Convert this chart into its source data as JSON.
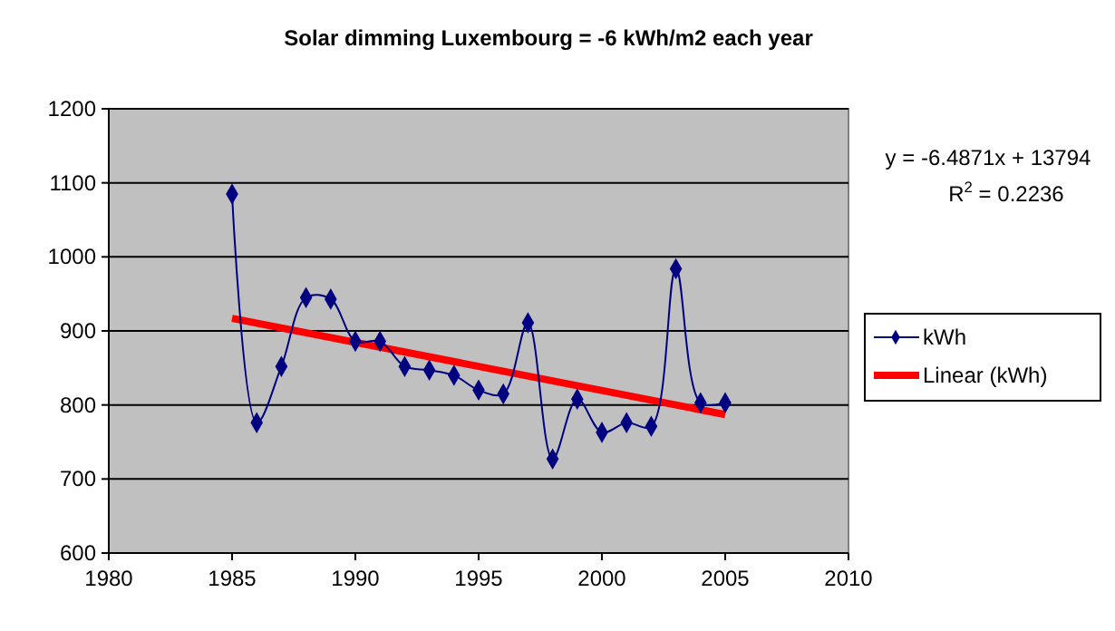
{
  "chart_data": {
    "type": "line",
    "title": "Solar dimming Luxembourg = -6 kWh/m2 each year",
    "x": [
      1985,
      1986,
      1987,
      1988,
      1989,
      1990,
      1991,
      1992,
      1993,
      1994,
      1995,
      1996,
      1997,
      1998,
      1999,
      2000,
      2001,
      2002,
      2003,
      2004,
      2005
    ],
    "series": [
      {
        "name": "kWh",
        "color": "#000080",
        "marker": "diamond",
        "values": [
          1085,
          776,
          852,
          945,
          943,
          886,
          886,
          852,
          847,
          840,
          820,
          815,
          911,
          727,
          808,
          763,
          776,
          771,
          984,
          803,
          803
        ]
      },
      {
        "name": "Linear (kWh)",
        "color": "#ff0000",
        "marker": "none",
        "x": [
          1985,
          2005
        ],
        "values": [
          917,
          787
        ]
      }
    ],
    "xlim": [
      1980,
      2010
    ],
    "xticks": [
      1980,
      1985,
      1990,
      1995,
      2000,
      2005,
      2010
    ],
    "ylim": [
      600,
      1200
    ],
    "yticks": [
      600,
      700,
      800,
      900,
      1000,
      1100,
      1200
    ],
    "grid": "y",
    "legend": "right",
    "annotations": [
      "y = -6.4871x + 13794",
      "R$^{2}$ = 0.2236"
    ]
  }
}
